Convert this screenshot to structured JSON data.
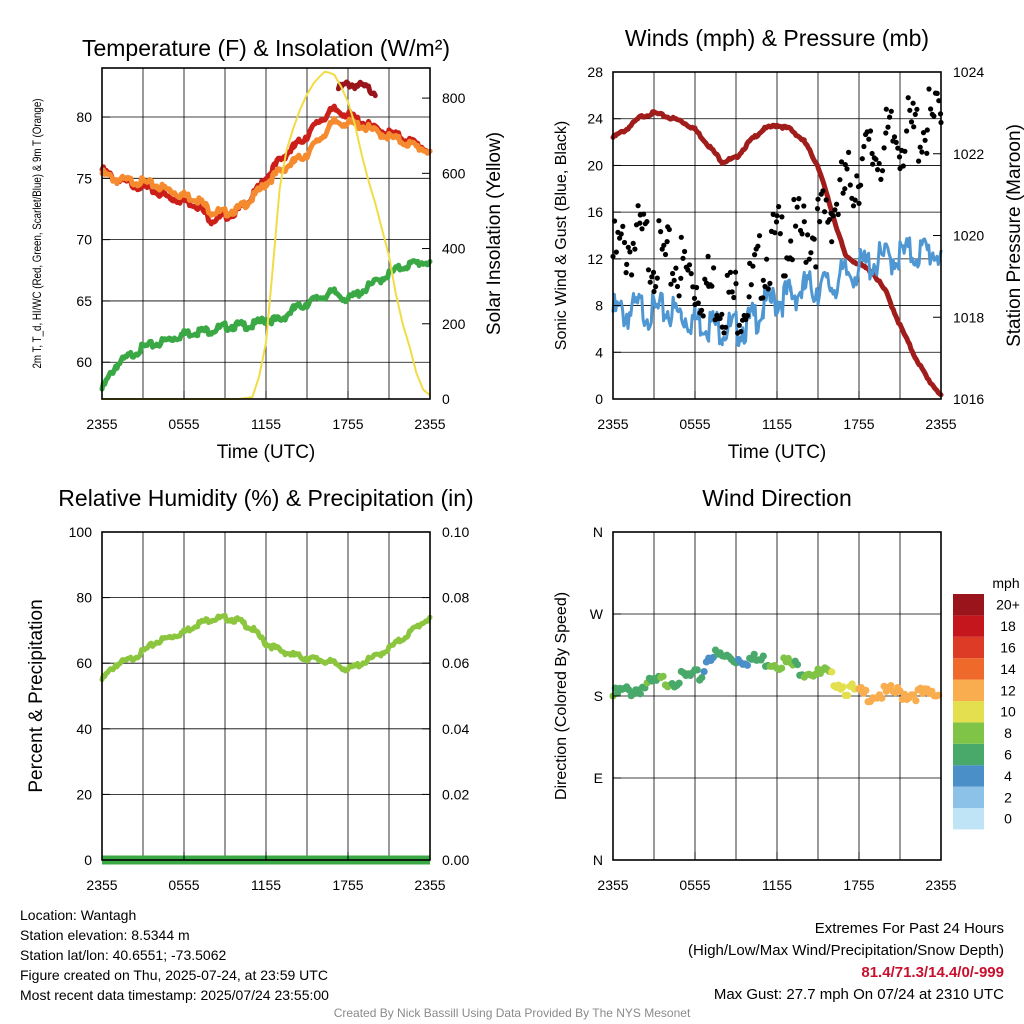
{
  "x_ticks": [
    "2355",
    "0555",
    "1155",
    "1755",
    "2355"
  ],
  "chart_data": [
    {
      "type": "line",
      "title": "Temperature (F) & Insolation (W/m²)",
      "xlabel": "Time (UTC)",
      "ylabel_left": "2m T, T_d, HI/WC (Red, Green, Scarlet/Blue) & 9m T (Orange)",
      "ylabel_right": "Solar Insolation (Yellow)",
      "ylim_left": [
        57,
        84
      ],
      "yticks_left": [
        60,
        65,
        70,
        75,
        80
      ],
      "ylim_right": [
        0,
        880
      ],
      "yticks_right": [
        0,
        200,
        400,
        600,
        800
      ],
      "x_hours": [
        0,
        24
      ],
      "series": [
        {
          "color": "#cc1f1a",
          "axis": "left",
          "x": [
            0,
            1,
            2,
            3,
            4,
            5,
            6,
            7,
            8,
            9,
            10,
            11,
            12,
            13,
            14,
            15,
            16,
            17,
            18,
            19,
            20,
            21,
            22,
            23,
            24
          ],
          "y": [
            75.7,
            74.9,
            74.6,
            74.3,
            73.9,
            73.4,
            73.2,
            72.8,
            71.6,
            71.9,
            72.4,
            73.5,
            75.0,
            76.5,
            77.5,
            78.5,
            79.8,
            80.6,
            80.2,
            79.6,
            79.0,
            78.7,
            78.3,
            77.8,
            77.2
          ]
        },
        {
          "color": "#f58a2e",
          "axis": "left",
          "x": [
            0,
            1,
            2,
            3,
            4,
            5,
            6,
            7,
            8,
            9,
            10,
            11,
            12,
            13,
            14,
            15,
            16,
            17,
            18,
            19,
            20,
            21,
            22,
            23,
            24
          ],
          "y": [
            75.4,
            74.9,
            74.8,
            74.7,
            74.4,
            74.0,
            73.6,
            73.3,
            72.3,
            72.2,
            72.5,
            73.4,
            74.6,
            75.6,
            76.3,
            77.0,
            78.3,
            79.6,
            79.5,
            79.3,
            78.8,
            78.4,
            78.0,
            77.6,
            77.2
          ]
        },
        {
          "color": "#99151b",
          "axis": "left",
          "x": [
            17.3,
            18,
            19,
            20
          ],
          "y": [
            82.3,
            82.7,
            82.5,
            82.1
          ]
        },
        {
          "color": "#3aa845",
          "axis": "left",
          "x": [
            0,
            1,
            2,
            3,
            4,
            5,
            6,
            7,
            8,
            9,
            10,
            11,
            12,
            13,
            14,
            15,
            16,
            17,
            18,
            19,
            20,
            21,
            22,
            23,
            24
          ],
          "y": [
            57.8,
            59.7,
            60.5,
            61.2,
            61.5,
            61.9,
            62.3,
            62.5,
            62.6,
            62.9,
            63.0,
            63.0,
            63.5,
            63.4,
            64.3,
            64.8,
            65.3,
            65.7,
            65.1,
            65.8,
            66.5,
            67.2,
            67.8,
            68.1,
            68.2
          ]
        },
        {
          "color": "#f2dc46",
          "axis": "right",
          "x": [
            0,
            1,
            2,
            3,
            4,
            5,
            6,
            7,
            8,
            9,
            10,
            11,
            11.5,
            12,
            12.5,
            13,
            13.5,
            14,
            14.5,
            15,
            15.5,
            16,
            16.3,
            16.6,
            17,
            17.5,
            18,
            18.5,
            19,
            19.5,
            20,
            20.5,
            21,
            21.5,
            22,
            22.5,
            23,
            23.5,
            24
          ],
          "y": [
            0,
            0,
            0,
            0,
            0,
            0,
            0,
            0,
            0,
            0,
            0,
            5,
            60,
            150,
            350,
            560,
            660,
            720,
            770,
            810,
            840,
            860,
            870,
            868,
            862,
            830,
            790,
            730,
            650,
            580,
            520,
            450,
            380,
            280,
            200,
            140,
            70,
            25,
            10
          ]
        }
      ]
    },
    {
      "type": "line",
      "title": "Winds (mph) & Pressure (mb)",
      "xlabel": "Time (UTC)",
      "ylabel_left": "Sonic Wind & Gust (Blue, Black)",
      "ylabel_right": "Station Pressure (Maroon)",
      "ylim_left": [
        0,
        28
      ],
      "yticks_left": [
        0,
        4,
        8,
        12,
        16,
        20,
        24,
        28
      ],
      "ylim_right": [
        1016,
        1024
      ],
      "yticks_right": [
        1016,
        1018,
        1020,
        1022,
        1024
      ],
      "x_hours": [
        0,
        24
      ],
      "series": [
        {
          "color": "#a01d1c",
          "axis": "right",
          "x": [
            0,
            1,
            2,
            3,
            4,
            5,
            6,
            7,
            8,
            9,
            10,
            11,
            12,
            13,
            14,
            15,
            16,
            17,
            18,
            19,
            20,
            21,
            22,
            23,
            24
          ],
          "y": [
            1022.4,
            1022.6,
            1022.9,
            1023.0,
            1022.9,
            1022.8,
            1022.6,
            1022.2,
            1021.8,
            1021.9,
            1022.3,
            1022.6,
            1022.7,
            1022.6,
            1022.3,
            1021.7,
            1020.6,
            1019.5,
            1019.3,
            1019.1,
            1018.6,
            1017.8,
            1017.1,
            1016.5,
            1016.1
          ]
        },
        {
          "color": "#4f97d2",
          "axis": "left",
          "x": [
            0,
            1,
            2,
            3,
            4,
            5,
            6,
            7,
            8,
            9,
            10,
            11,
            12,
            13,
            14,
            15,
            16,
            17,
            18,
            19,
            20,
            21,
            22,
            23,
            24
          ],
          "y": [
            7.5,
            7.3,
            7.8,
            7.4,
            7.6,
            7.2,
            6.8,
            6.5,
            6.1,
            6.0,
            6.4,
            7.9,
            8.5,
            8.9,
            9.4,
            9.6,
            9.7,
            10.6,
            11.2,
            11.7,
            12.0,
            12.3,
            12.5,
            12.6,
            12.6
          ]
        },
        {
          "color": "#000000",
          "axis": "left",
          "style": "points",
          "x": [
            0,
            1,
            2,
            3,
            4,
            5,
            6,
            7,
            8,
            9,
            10,
            11,
            12,
            13,
            14,
            15,
            16,
            17,
            18,
            19,
            20,
            21,
            22,
            23,
            24
          ],
          "y": [
            13.0,
            13.8,
            14.5,
            13.2,
            12.4,
            12.1,
            10.8,
            10.4,
            9.6,
            9.3,
            9.8,
            12.6,
            14.2,
            14.6,
            15.0,
            15.3,
            17.2,
            18.6,
            20.5,
            21.8,
            22.5,
            23.3,
            23.6,
            24.2,
            24.5
          ]
        }
      ]
    },
    {
      "type": "line",
      "title": "Relative Humidity (%) & Precipitation (in)",
      "xlabel": "",
      "ylabel_left": "Percent & Precipitation",
      "ylabel_right": "",
      "ylim_left": [
        0,
        100
      ],
      "yticks_left": [
        0,
        20,
        40,
        60,
        80,
        100
      ],
      "ylim_right": [
        0,
        0.1
      ],
      "yticks_right": [
        "0.00",
        "0.02",
        "0.04",
        "0.06",
        "0.08",
        "0.10"
      ],
      "x_hours": [
        0,
        24
      ],
      "series": [
        {
          "color": "#8cc63f",
          "axis": "left",
          "x": [
            0,
            1,
            2,
            3,
            4,
            5,
            6,
            7,
            8,
            9,
            10,
            11,
            12,
            13,
            14,
            15,
            16,
            17,
            18,
            19,
            20,
            21,
            22,
            23,
            24
          ],
          "y": [
            55.0,
            59.5,
            61.0,
            63.5,
            66.5,
            68.0,
            69.5,
            72.0,
            73.5,
            73.8,
            73.0,
            70.5,
            66.0,
            64.0,
            62.5,
            61.5,
            61.0,
            60.0,
            58.0,
            60.0,
            62.0,
            64.5,
            67.5,
            71.0,
            74.0
          ]
        },
        {
          "color": "#3aa845",
          "axis": "right",
          "x": [
            0,
            24
          ],
          "y": [
            0,
            0
          ]
        }
      ]
    },
    {
      "type": "scatter",
      "title": "Wind Direction",
      "xlabel": "",
      "ylabel_left": "Direction (Colored By Speed)",
      "ylim_left": [
        0,
        360
      ],
      "yticks_left": [
        "N",
        "E",
        "S",
        "W",
        "N"
      ],
      "x_hours": [
        0,
        24
      ],
      "colorbar": {
        "unit": "mph",
        "labels": [
          "0",
          "2",
          "4",
          "6",
          "8",
          "10",
          "12",
          "14",
          "16",
          "18",
          "20+"
        ],
        "colors": [
          "#bfe4f6",
          "#8cc2e8",
          "#4a8fc8",
          "#48a96a",
          "#7fc347",
          "#e3df4e",
          "#f9ad4e",
          "#ef6a2a",
          "#dd3b26",
          "#c4161c",
          "#99151b"
        ]
      },
      "series": [
        {
          "name": "direction",
          "x": [
            0,
            0.5,
            1,
            1.5,
            2,
            2.5,
            3,
            3.5,
            4,
            4.5,
            5,
            5.5,
            6,
            6.5,
            7,
            7.5,
            8,
            8.5,
            9,
            9.5,
            10,
            10.5,
            11,
            11.5,
            12,
            12.5,
            13,
            13.5,
            14,
            14.5,
            15,
            15.5,
            16,
            16.5,
            17,
            17.5,
            18,
            18.5,
            19,
            19.5,
            20,
            20.5,
            21,
            21.5,
            22,
            22.5,
            23,
            23.5,
            24
          ],
          "y": [
            183,
            187,
            188,
            189,
            192,
            194,
            197,
            199,
            200,
            201,
            202,
            204,
            204,
            205,
            229,
            227,
            226,
            225,
            224,
            224,
            223,
            222,
            222,
            221,
            220,
            220,
            218,
            214,
            211,
            211,
            206,
            208,
            202,
            199,
            191,
            189,
            185,
            184,
            185,
            185,
            186,
            187,
            186,
            185,
            186,
            185,
            184,
            185,
            185
          ],
          "speed": [
            8,
            7,
            7,
            6,
            7,
            8,
            7,
            8,
            9,
            7,
            7,
            6,
            7,
            6,
            5,
            6,
            6,
            6,
            6,
            5,
            6,
            6,
            6,
            8,
            8,
            8,
            9,
            7,
            8,
            9,
            9,
            9,
            10,
            10,
            11,
            11,
            12,
            12,
            12,
            12,
            13,
            13,
            12,
            13,
            13,
            12,
            13,
            12,
            13
          ]
        }
      ]
    }
  ],
  "footer": {
    "location": "Location: Wantagh",
    "elevation": "Station elevation: 8.5344 m",
    "latlon": "Station lat/lon: 40.6551; -73.5062",
    "created": "Figure created on Thu, 2025-07-24, at 23:59 UTC",
    "recent": "Most recent data timestamp: 2025/07/24 23:55:00",
    "extremes_title": "Extremes For Past 24 Hours",
    "extremes_sub": "(High/Low/Max Wind/Precipitation/Snow Depth)",
    "extremes_values": "81.4/71.3/14.4/0/-999",
    "max_gust": "Max Gust: 27.7 mph On 07/24 at 2310 UTC",
    "credit": "Created By Nick Bassill Using Data Provided By The NYS Mesonet"
  }
}
